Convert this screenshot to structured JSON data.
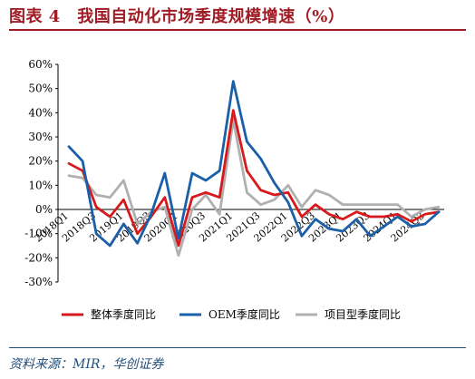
{
  "figure": {
    "title": "图表 4　我国自动化市场季度规模增速（%）",
    "source": "资料来源：MIR，华创证券"
  },
  "colors": {
    "title": "#a01c24",
    "source": "#1f4e79"
  },
  "chart_data": {
    "type": "line",
    "title": "",
    "xlabel": "",
    "ylabel": "",
    "ylim": [
      -30,
      60
    ],
    "yticks": [
      "-30%",
      "-20%",
      "-10%",
      "0%",
      "10%",
      "20%",
      "30%",
      "40%",
      "50%",
      "60%"
    ],
    "x": [
      "2018Q1",
      "2018Q2",
      "2018Q3",
      "2018Q4",
      "2019Q1",
      "2019Q2",
      "2019Q3",
      "2019Q4",
      "2020Q1",
      "2020Q2",
      "2020Q3",
      "2020Q4",
      "2021Q1",
      "2021Q2",
      "2021Q3",
      "2021Q4",
      "2022Q1",
      "2022Q2",
      "2022Q3",
      "2022Q4",
      "2023Q1",
      "2023Q2",
      "2023Q3",
      "2023Q4",
      "2024Q1",
      "2024Q2",
      "2024Q3",
      "2024Q4"
    ],
    "tick_labels": [
      "2018Q1",
      "2018Q3",
      "2019Q1",
      "2019Q3",
      "2020Q1",
      "2020Q3",
      "2021Q1",
      "2021Q3",
      "2022Q1",
      "2022Q3",
      "2023Q1",
      "2023Q3",
      "2024Q1",
      "2024Q3"
    ],
    "grid": false,
    "legend_position": "bottom",
    "series": [
      {
        "name": "整体季度同比",
        "color": "#d7191c",
        "values": [
          19,
          16,
          1,
          -3,
          4,
          -10,
          -3,
          5,
          -15,
          5,
          7,
          5,
          41,
          16,
          8,
          6,
          7,
          -3,
          2,
          -2,
          -4,
          -1,
          -3,
          -3,
          -2,
          -5,
          -2,
          -1
        ]
      },
      {
        "name": "OEM季度同比",
        "color": "#1a5fa8",
        "values": [
          26,
          20,
          -10,
          -15,
          -6,
          -14,
          -2,
          15,
          -12,
          15,
          12,
          16,
          53,
          28,
          21,
          11,
          3,
          -11,
          -4,
          -8,
          -9,
          -4,
          -11,
          -7,
          -3,
          -7,
          -6,
          -1
        ]
      },
      {
        "name": "项目型季度同比",
        "color": "#b0b0b0",
        "values": [
          14,
          13,
          6,
          5,
          12,
          -6,
          -1,
          1,
          -19,
          0,
          6,
          -2,
          37,
          7,
          2,
          4,
          10,
          1,
          8,
          6,
          2,
          2,
          2,
          2,
          2,
          -3,
          0,
          1
        ]
      }
    ]
  }
}
